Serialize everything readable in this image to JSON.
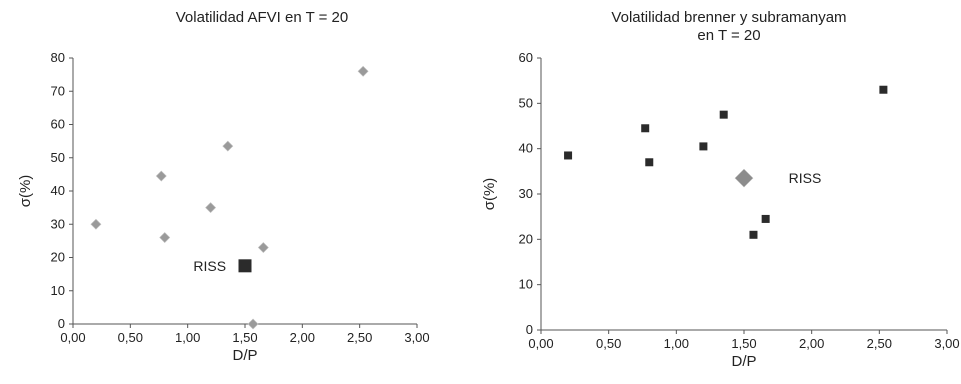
{
  "chart_data": [
    {
      "type": "scatter",
      "title": "Volatilidad AFVI en T = 20",
      "xlabel": "D/P",
      "ylabel": "σ(%)",
      "xlim": [
        0,
        3
      ],
      "ylim": [
        0,
        80
      ],
      "x_ticks": [
        "0,00",
        "0,50",
        "1,00",
        "1,50",
        "2,00",
        "2,50",
        "3,00"
      ],
      "y_ticks": [
        "0",
        "10",
        "20",
        "30",
        "40",
        "50",
        "60",
        "70",
        "80"
      ],
      "grid": false,
      "legend": "none",
      "series": [
        {
          "marker": "diamond",
          "color": "#9a9a9a",
          "points": [
            {
              "x": 0.2,
              "y": 30
            },
            {
              "x": 0.77,
              "y": 44.5
            },
            {
              "x": 0.8,
              "y": 26
            },
            {
              "x": 1.2,
              "y": 35
            },
            {
              "x": 1.35,
              "y": 53.5
            },
            {
              "x": 1.57,
              "y": 0
            },
            {
              "x": 1.66,
              "y": 23
            },
            {
              "x": 2.53,
              "y": 76
            }
          ]
        },
        {
          "marker": "square",
          "color": "#2b2b2b",
          "points": [
            {
              "x": 1.5,
              "y": 17.5
            }
          ]
        }
      ],
      "annotations": [
        {
          "text": "RISS",
          "x": 1.05,
          "y": 17.5
        }
      ]
    },
    {
      "type": "scatter",
      "title": "Volatilidad brenner y subramanyam\nen T = 20",
      "xlabel": "D/P",
      "ylabel": "σ(%)",
      "xlim": [
        0,
        3
      ],
      "ylim": [
        0,
        60
      ],
      "x_ticks": [
        "0,00",
        "0,50",
        "1,00",
        "1,50",
        "2,00",
        "2,50",
        "3,00"
      ],
      "y_ticks": [
        "0",
        "10",
        "20",
        "30",
        "40",
        "50",
        "60"
      ],
      "grid": false,
      "legend": "none",
      "series": [
        {
          "marker": "square",
          "color": "#2b2b2b",
          "points": [
            {
              "x": 0.2,
              "y": 38.5
            },
            {
              "x": 0.77,
              "y": 44.5
            },
            {
              "x": 0.8,
              "y": 37
            },
            {
              "x": 1.2,
              "y": 40.5
            },
            {
              "x": 1.35,
              "y": 47.5
            },
            {
              "x": 1.57,
              "y": 21
            },
            {
              "x": 1.66,
              "y": 24.5
            },
            {
              "x": 2.53,
              "y": 53
            }
          ]
        },
        {
          "marker": "diamond",
          "color": "#8c8c8c",
          "points": [
            {
              "x": 1.5,
              "y": 33.5
            }
          ]
        }
      ],
      "annotations": [
        {
          "text": "RISS",
          "x": 1.83,
          "y": 33.5
        }
      ]
    }
  ]
}
